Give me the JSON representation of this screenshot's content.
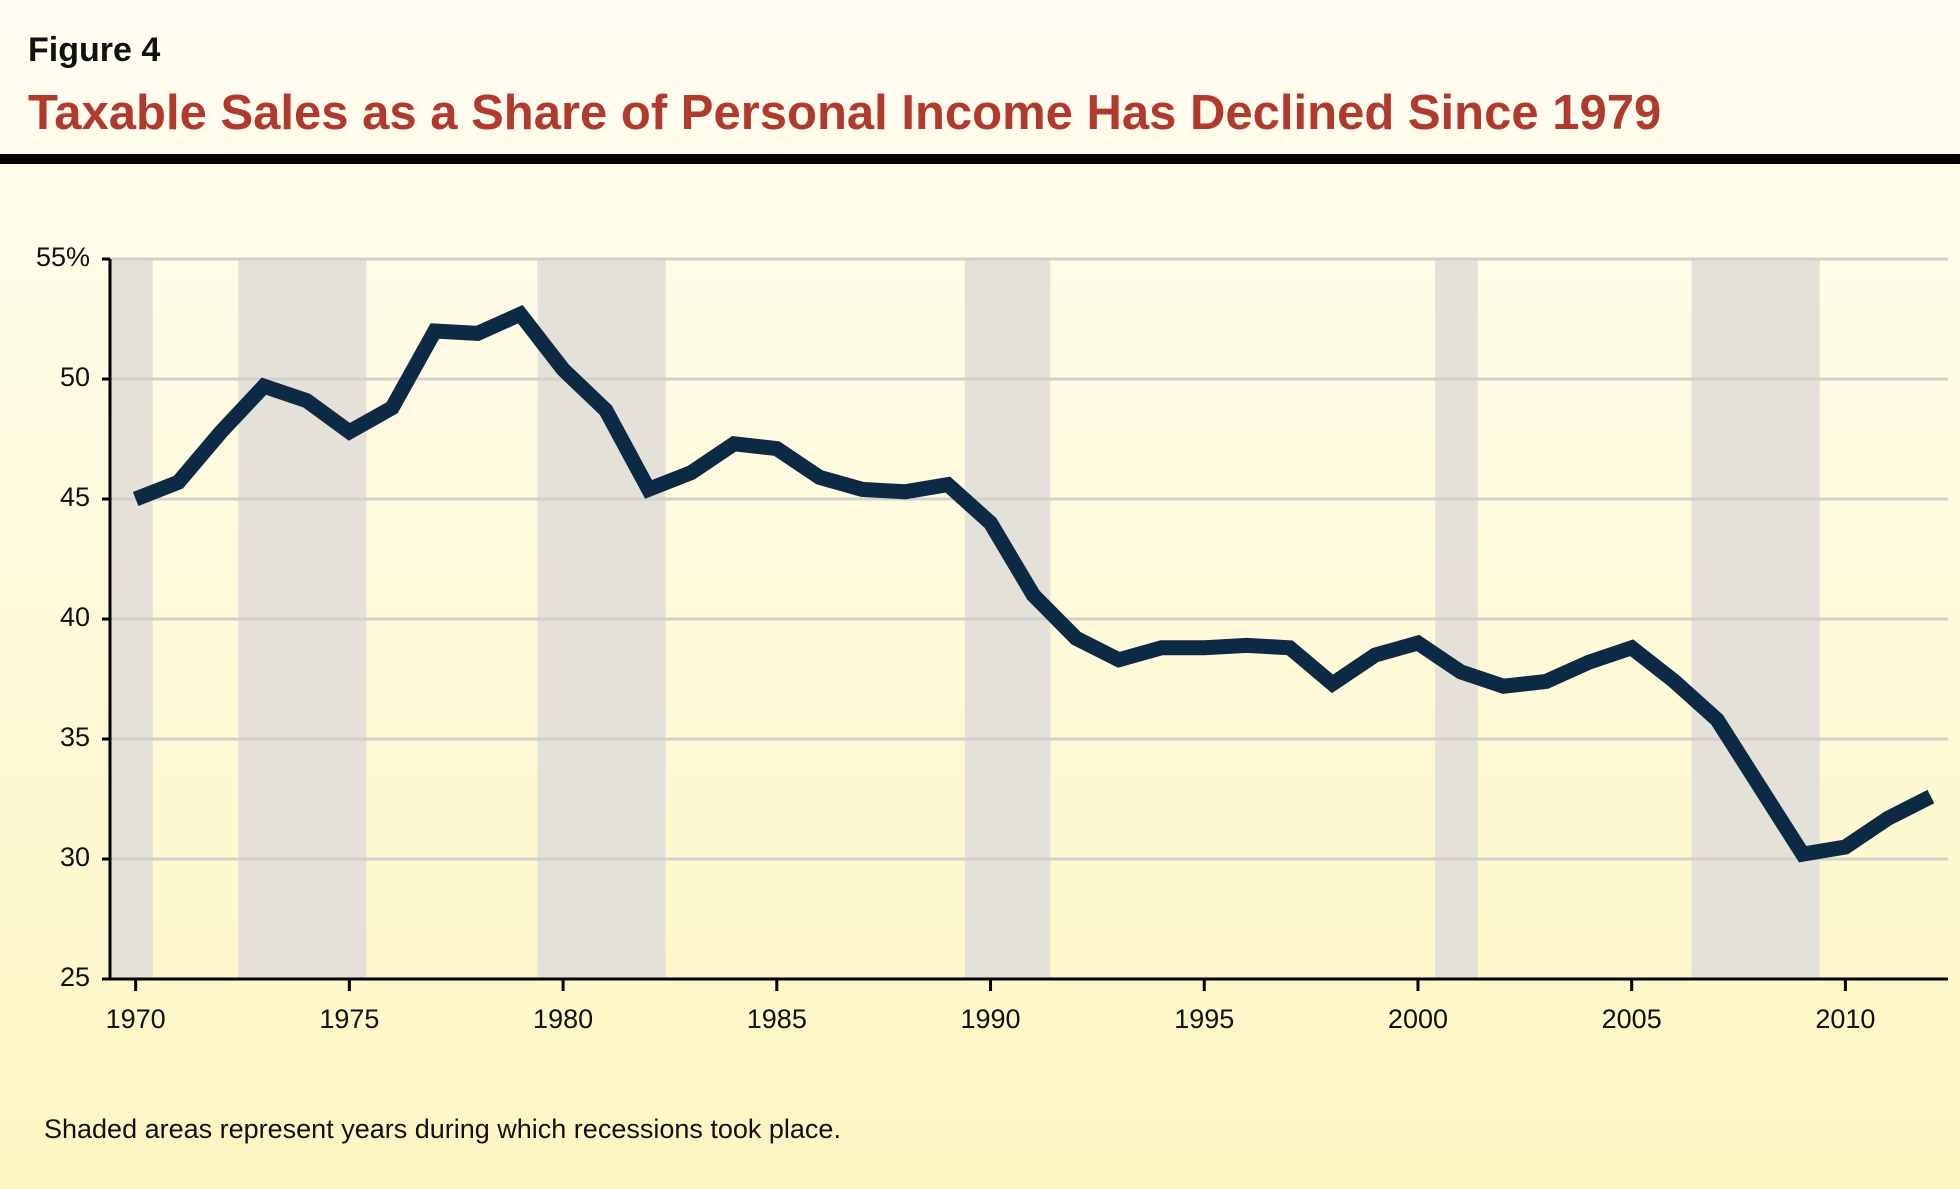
{
  "header": {
    "figure": "Figure 4",
    "title": "Taxable Sales as a Share of Personal Income Has Declined Since 1979"
  },
  "note": "Shaded areas represent years during which recessions took place.",
  "chart_data": {
    "type": "line",
    "x": [
      1970,
      1971,
      1972,
      1973,
      1974,
      1975,
      1976,
      1977,
      1978,
      1979,
      1980,
      1981,
      1982,
      1983,
      1984,
      1985,
      1986,
      1987,
      1988,
      1989,
      1990,
      1991,
      1992,
      1993,
      1994,
      1995,
      1996,
      1997,
      1998,
      1999,
      2000,
      2001,
      2002,
      2003,
      2004,
      2005,
      2006,
      2007,
      2008,
      2009,
      2010,
      2011,
      2012
    ],
    "series": [
      {
        "color": "#0d2a45",
        "values": [
          45.0,
          45.7,
          47.8,
          49.7,
          49.1,
          47.8,
          48.8,
          52.0,
          51.9,
          52.7,
          50.4,
          48.7,
          45.4,
          46.1,
          47.3,
          47.1,
          45.9,
          45.4,
          45.3,
          45.6,
          44.0,
          41.0,
          39.2,
          38.3,
          38.8,
          38.8,
          38.9,
          38.8,
          37.3,
          38.5,
          39.0,
          37.8,
          37.2,
          37.4,
          38.2,
          38.8,
          37.4,
          35.8,
          33.0,
          30.2,
          30.5,
          31.7,
          32.6
        ]
      }
    ],
    "recessions": [
      [
        1969.4,
        1970.4
      ],
      [
        1972.4,
        1975.4
      ],
      [
        1979.4,
        1982.4
      ],
      [
        1989.4,
        1991.4
      ],
      [
        2000.4,
        2001.4
      ],
      [
        2006.4,
        2009.4
      ]
    ],
    "recession_color": "#e4e2d8",
    "xlim": [
      1969.4,
      2012.4
    ],
    "xticks": [
      1970,
      1975,
      1980,
      1985,
      1990,
      1995,
      2000,
      2005,
      2010
    ],
    "ylim": [
      25,
      55
    ],
    "yticks": [
      25,
      30,
      35,
      40,
      45,
      50,
      {
        "value": 55,
        "label": "55%"
      }
    ],
    "grid": true
  }
}
